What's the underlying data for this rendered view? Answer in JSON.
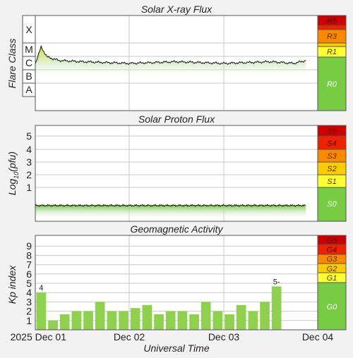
{
  "panels": {
    "xray": {
      "title": "Solar X-ray Flux",
      "ylabel": "Flare Class",
      "classes": [
        "X",
        "M",
        "C",
        "B",
        "A"
      ],
      "scale": [
        {
          "label": "R5",
          "color": "#cc0000",
          "text": "#550000"
        },
        {
          "label": "",
          "color": "#ee2200",
          "text": "#550000"
        },
        {
          "label": "R3",
          "color": "#ff8800",
          "text": "#553300"
        },
        {
          "label": "",
          "color": "#ffcc00",
          "text": "#553300"
        },
        {
          "label": "R1",
          "color": "#ffff33",
          "text": "#444400"
        },
        {
          "label": "R0",
          "color": "#77cc44",
          "text": "#ffffff"
        }
      ]
    },
    "proton": {
      "title": "Solar Proton Flux",
      "ylabel": "Log10(pfu)",
      "ylabel_base": "Log",
      "ylabel_sub": "10",
      "ylabel_rest": "(pfu)",
      "ticks": [
        "5",
        "4",
        "3",
        "2",
        "1"
      ],
      "scale": [
        {
          "label": "S5",
          "color": "#cc0000",
          "text": "#550000"
        },
        {
          "label": "S4",
          "color": "#ee2200",
          "text": "#550000"
        },
        {
          "label": "S3",
          "color": "#ff8800",
          "text": "#553300"
        },
        {
          "label": "S2",
          "color": "#ffcc00",
          "text": "#553300"
        },
        {
          "label": "S1",
          "color": "#ffff33",
          "text": "#444400"
        },
        {
          "label": "S0",
          "color": "#77cc44",
          "text": "#ffffff"
        }
      ]
    },
    "geomag": {
      "title": "Geomagnetic Activity",
      "ylabel": "Kp index",
      "ticks": [
        "9",
        "8",
        "7",
        "6",
        "5",
        "4",
        "3",
        "2",
        "1"
      ],
      "scale": [
        {
          "label": "G5",
          "color": "#cc0000",
          "text": "#550000"
        },
        {
          "label": "G4",
          "color": "#ee2200",
          "text": "#550000"
        },
        {
          "label": "G3",
          "color": "#ff8800",
          "text": "#553300"
        },
        {
          "label": "G2",
          "color": "#ffcc00",
          "text": "#553300"
        },
        {
          "label": "G1",
          "color": "#ffff33",
          "text": "#444400"
        },
        {
          "label": "G0",
          "color": "#77cc44",
          "text": "#ffffff"
        }
      ]
    }
  },
  "xaxis": {
    "label": "Universal Time",
    "ticks": [
      "2025 Dec 01",
      "Dec 02",
      "Dec 03",
      "Dec 04"
    ]
  },
  "colors": {
    "bar": "#8fd14f",
    "grid": "#c8c8c8",
    "frame": "#555555"
  },
  "chart_data": [
    {
      "type": "area",
      "title": "Solar X-ray Flux",
      "ylabel": "Flare Class",
      "xlabel": "Universal Time",
      "y_scale": "log",
      "y_categories": [
        "A",
        "B",
        "C",
        "M",
        "X"
      ],
      "x_range": [
        "2025-12-01T00:00",
        "2025-12-04T00:00"
      ],
      "series": [
        {
          "x": [
            "2025-12-01T00:00",
            "2025-12-01T01:30",
            "2025-12-01T03:00",
            "2025-12-01T06:00",
            "2025-12-01T12:00",
            "2025-12-02T00:00",
            "2025-12-02T12:00",
            "2025-12-03T00:00",
            "2025-12-03T12:00",
            "2025-12-03T18:00",
            "2025-12-03T21:00"
          ],
          "y": [
            "C3",
            "M5",
            "C9",
            "C5",
            "C4",
            "C3",
            "C4",
            "C3",
            "C4",
            "C3",
            "C5"
          ]
        }
      ],
      "severity_scale": [
        "R0",
        "R1",
        "R3",
        "R5"
      ]
    },
    {
      "type": "area",
      "title": "Solar Proton Flux",
      "ylabel": "Log10(pfu)",
      "xlabel": "Universal Time",
      "y_ticks": [
        1,
        2,
        3,
        4,
        5
      ],
      "x_range": [
        "2025-12-01T00:00",
        "2025-12-04T00:00"
      ],
      "series": [
        {
          "x": [
            "2025-12-01T00:00",
            "2025-12-02T00:00",
            "2025-12-03T00:00",
            "2025-12-03T21:00"
          ],
          "y": [
            -0.4,
            -0.4,
            -0.4,
            -0.4
          ]
        }
      ],
      "severity_scale": [
        "S0",
        "S1",
        "S2",
        "S3",
        "S4",
        "S5"
      ]
    },
    {
      "type": "bar",
      "title": "Geomagnetic Activity",
      "ylabel": "Kp index",
      "xlabel": "Universal Time",
      "ylim": [
        0,
        10
      ],
      "x_range": [
        "2025-12-01T00:00",
        "2025-12-04T00:00"
      ],
      "interval_hours": 3,
      "values": [
        4,
        1,
        1.67,
        2,
        2,
        3,
        2,
        2,
        2.33,
        2.67,
        1.67,
        2,
        2,
        1.67,
        3,
        2,
        1.67,
        2.67,
        2,
        3,
        4.67
      ],
      "bar_labels": {
        "0": "4",
        "20": "5-"
      },
      "severity_scale": [
        "G0",
        "G1",
        "G2",
        "G3",
        "G4",
        "G5"
      ]
    }
  ]
}
